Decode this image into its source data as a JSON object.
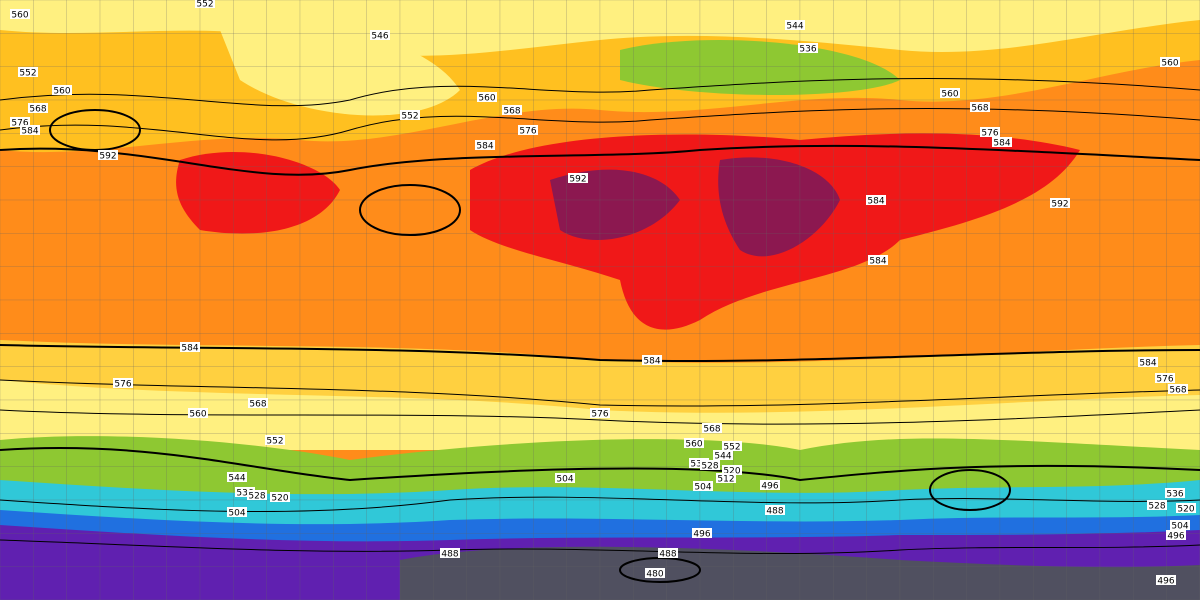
{
  "contour_labels": [
    552,
    560,
    552,
    560,
    568,
    576,
    584,
    592,
    546,
    552,
    560,
    568,
    576,
    584,
    592,
    544,
    536,
    560,
    568,
    576,
    584,
    560,
    592,
    584,
    584,
    584,
    576,
    568,
    560,
    552,
    544,
    536,
    528,
    520,
    504,
    584,
    576,
    568,
    560,
    552,
    544,
    536,
    528,
    520,
    512,
    504,
    504,
    496,
    488,
    496,
    488,
    488,
    480,
    584,
    576,
    568,
    528,
    536,
    520,
    504,
    496,
    496
  ]
}
